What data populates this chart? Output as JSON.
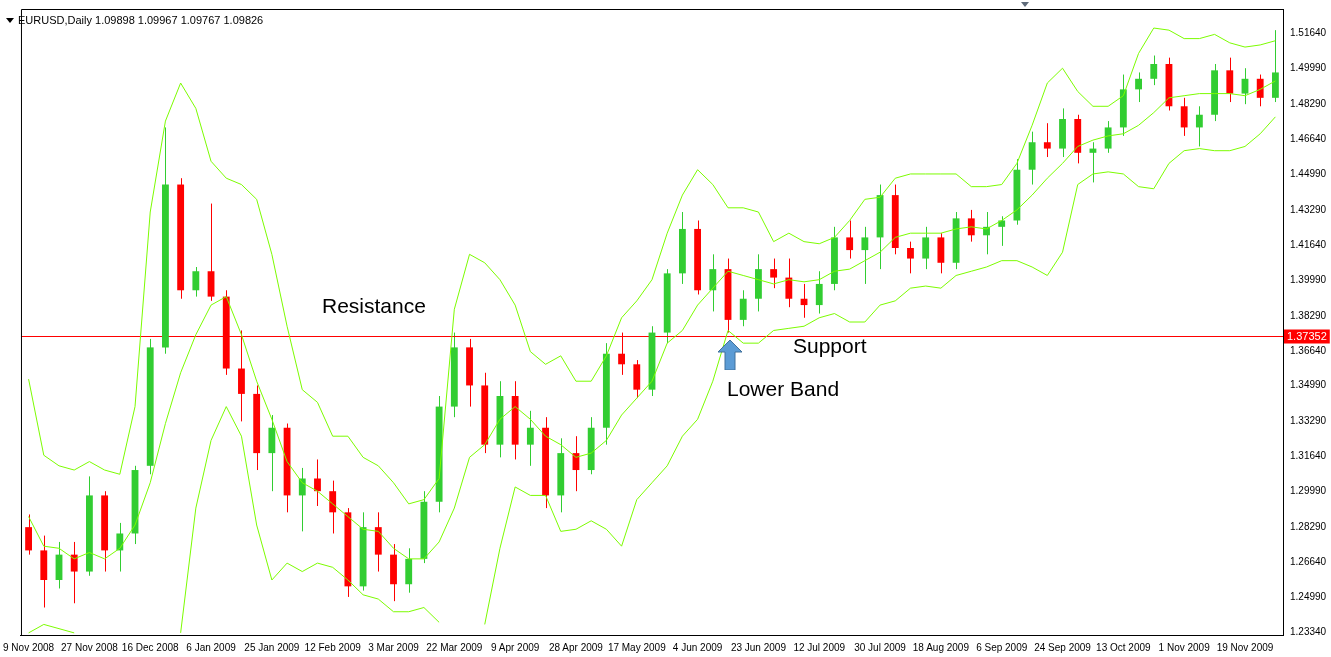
{
  "chart_data": {
    "type": "candlestick",
    "title": "EURUSD,Daily 1.09898 1.09967 1.09767 1.09826",
    "categories": [
      "9 Nov 2008",
      null,
      null,
      null,
      "27 Nov 2008",
      null,
      null,
      null,
      "16 Dec 2008",
      null,
      null,
      null,
      "6 Jan 2009",
      null,
      null,
      null,
      "25 Jan 2009",
      null,
      null,
      null,
      "12 Feb 2009",
      null,
      null,
      null,
      "3 Mar 2009",
      null,
      null,
      null,
      "22 Mar 2009",
      null,
      null,
      null,
      "9 Apr 2009",
      null,
      null,
      null,
      "28 Apr 2009",
      null,
      null,
      null,
      "17 May 2009",
      null,
      null,
      null,
      "4 Jun 2009",
      null,
      null,
      null,
      "23 Jun 2009",
      null,
      null,
      null,
      "12 Jul 2009",
      null,
      null,
      null,
      "30 Jul 2009",
      null,
      null,
      null,
      "18 Aug 2009",
      null,
      null,
      null,
      "6 Sep 2009",
      null,
      null,
      null,
      "24 Sep 2009",
      null,
      null,
      null,
      "13 Oct 2009",
      null,
      null,
      null,
      "1 Nov 2009",
      null,
      null,
      null,
      "19 Nov 2009",
      null,
      null
    ],
    "series": [
      {
        "ohlc": [
          [
            1.283,
            1.289,
            1.27,
            1.272
          ],
          [
            1.272,
            1.279,
            1.245,
            1.258
          ],
          [
            1.258,
            1.276,
            1.254,
            1.27
          ],
          [
            1.27,
            1.276,
            1.247,
            1.262
          ],
          [
            1.262,
            1.307,
            1.26,
            1.298
          ],
          [
            1.298,
            1.3,
            1.262,
            1.272
          ],
          [
            1.272,
            1.285,
            1.262,
            1.28
          ],
          [
            1.28,
            1.312,
            1.275,
            1.31
          ],
          [
            1.312,
            1.372,
            1.308,
            1.368
          ],
          [
            1.368,
            1.472,
            1.365,
            1.445
          ],
          [
            1.445,
            1.448,
            1.391,
            1.395
          ],
          [
            1.395,
            1.406,
            1.392,
            1.404
          ],
          [
            1.404,
            1.436,
            1.39,
            1.392
          ],
          [
            1.392,
            1.395,
            1.355,
            1.358
          ],
          [
            1.358,
            1.376,
            1.333,
            1.346
          ],
          [
            1.346,
            1.35,
            1.31,
            1.318
          ],
          [
            1.318,
            1.336,
            1.3,
            1.33
          ],
          [
            1.33,
            1.332,
            1.29,
            1.298
          ],
          [
            1.298,
            1.311,
            1.281,
            1.306
          ],
          [
            1.306,
            1.315,
            1.293,
            1.3
          ],
          [
            1.3,
            1.305,
            1.28,
            1.29
          ],
          [
            1.29,
            1.292,
            1.25,
            1.255
          ],
          [
            1.255,
            1.29,
            1.253,
            1.283
          ],
          [
            1.283,
            1.29,
            1.262,
            1.27
          ],
          [
            1.27,
            1.275,
            1.248,
            1.256
          ],
          [
            1.256,
            1.273,
            1.252,
            1.268
          ],
          [
            1.268,
            1.3,
            1.266,
            1.295
          ],
          [
            1.295,
            1.345,
            1.29,
            1.34
          ],
          [
            1.34,
            1.375,
            1.335,
            1.368
          ],
          [
            1.368,
            1.372,
            1.34,
            1.35
          ],
          [
            1.35,
            1.356,
            1.318,
            1.322
          ],
          [
            1.322,
            1.352,
            1.316,
            1.345
          ],
          [
            1.345,
            1.352,
            1.315,
            1.322
          ],
          [
            1.322,
            1.338,
            1.312,
            1.33
          ],
          [
            1.33,
            1.335,
            1.292,
            1.298
          ],
          [
            1.298,
            1.325,
            1.29,
            1.318
          ],
          [
            1.318,
            1.326,
            1.3,
            1.31
          ],
          [
            1.31,
            1.335,
            1.308,
            1.33
          ],
          [
            1.33,
            1.37,
            1.322,
            1.365
          ],
          [
            1.365,
            1.375,
            1.355,
            1.36
          ],
          [
            1.36,
            1.362,
            1.344,
            1.348
          ],
          [
            1.348,
            1.378,
            1.345,
            1.375
          ],
          [
            1.375,
            1.405,
            1.37,
            1.403
          ],
          [
            1.403,
            1.432,
            1.398,
            1.424
          ],
          [
            1.424,
            1.428,
            1.393,
            1.395
          ],
          [
            1.395,
            1.412,
            1.385,
            1.405
          ],
          [
            1.405,
            1.41,
            1.375,
            1.381
          ],
          [
            1.381,
            1.395,
            1.378,
            1.391
          ],
          [
            1.391,
            1.412,
            1.385,
            1.405
          ],
          [
            1.405,
            1.41,
            1.396,
            1.401
          ],
          [
            1.401,
            1.41,
            1.387,
            1.391
          ],
          [
            1.391,
            1.398,
            1.382,
            1.388
          ],
          [
            1.388,
            1.404,
            1.384,
            1.398
          ],
          [
            1.398,
            1.425,
            1.395,
            1.42
          ],
          [
            1.42,
            1.428,
            1.41,
            1.414
          ],
          [
            1.414,
            1.425,
            1.398,
            1.42
          ],
          [
            1.42,
            1.445,
            1.405,
            1.44
          ],
          [
            1.44,
            1.445,
            1.412,
            1.415
          ],
          [
            1.415,
            1.418,
            1.403,
            1.41
          ],
          [
            1.41,
            1.425,
            1.405,
            1.42
          ],
          [
            1.42,
            1.422,
            1.403,
            1.408
          ],
          [
            1.408,
            1.432,
            1.405,
            1.429
          ],
          [
            1.429,
            1.433,
            1.418,
            1.421
          ],
          [
            1.421,
            1.432,
            1.412,
            1.425
          ],
          [
            1.425,
            1.43,
            1.416,
            1.428
          ],
          [
            1.428,
            1.457,
            1.426,
            1.452
          ],
          [
            1.452,
            1.47,
            1.445,
            1.465
          ],
          [
            1.465,
            1.474,
            1.458,
            1.462
          ],
          [
            1.462,
            1.481,
            1.458,
            1.476
          ],
          [
            1.476,
            1.478,
            1.455,
            1.46
          ],
          [
            1.46,
            1.465,
            1.446,
            1.462
          ],
          [
            1.462,
            1.475,
            1.46,
            1.472
          ],
          [
            1.472,
            1.497,
            1.468,
            1.49
          ],
          [
            1.49,
            1.498,
            1.484,
            1.495
          ],
          [
            1.495,
            1.506,
            1.492,
            1.502
          ],
          [
            1.502,
            1.505,
            1.48,
            1.482
          ],
          [
            1.482,
            1.486,
            1.468,
            1.472
          ],
          [
            1.472,
            1.482,
            1.463,
            1.478
          ],
          [
            1.478,
            1.502,
            1.475,
            1.499
          ],
          [
            1.499,
            1.505,
            1.484,
            1.488
          ],
          [
            1.488,
            1.5,
            1.483,
            1.495
          ],
          [
            1.495,
            1.497,
            1.482,
            1.486
          ],
          [
            1.486,
            1.518,
            1.484,
            1.498
          ]
        ],
        "colors": [
          "#ff0000",
          "#ff0000",
          "#32cd32",
          "#ff0000",
          "#32cd32",
          "#ff0000",
          "#32cd32",
          "#32cd32",
          "#32cd32",
          "#32cd32",
          "#ff0000",
          "#32cd32",
          "#ff0000",
          "#ff0000",
          "#ff0000",
          "#ff0000",
          "#32cd32",
          "#ff0000",
          "#32cd32",
          "#ff0000",
          "#ff0000",
          "#ff0000",
          "#32cd32",
          "#ff0000",
          "#ff0000",
          "#32cd32",
          "#32cd32",
          "#32cd32",
          "#32cd32",
          "#ff0000",
          "#ff0000",
          "#32cd32",
          "#ff0000",
          "#32cd32",
          "#ff0000",
          "#32cd32",
          "#ff0000",
          "#32cd32",
          "#32cd32",
          "#ff0000",
          "#ff0000",
          "#32cd32",
          "#32cd32",
          "#32cd32",
          "#ff0000",
          "#32cd32",
          "#ff0000",
          "#32cd32",
          "#32cd32",
          "#ff0000",
          "#ff0000",
          "#ff0000",
          "#32cd32",
          "#32cd32",
          "#ff0000",
          "#32cd32",
          "#32cd32",
          "#ff0000",
          "#ff0000",
          "#32cd32",
          "#ff0000",
          "#32cd32",
          "#ff0000",
          "#32cd32",
          "#32cd32",
          "#32cd32",
          "#32cd32",
          "#ff0000",
          "#32cd32",
          "#ff0000",
          "#32cd32",
          "#32cd32",
          "#32cd32",
          "#32cd32",
          "#32cd32",
          "#ff0000",
          "#ff0000",
          "#32cd32",
          "#32cd32",
          "#ff0000",
          "#32cd32",
          "#ff0000",
          "#32cd32"
        ]
      },
      {
        "type": "line",
        "color": "#7cfc00",
        "values": [
          1.353,
          1.317,
          1.312,
          1.31,
          1.314,
          1.31,
          1.308,
          1.34,
          1.432,
          1.475,
          1.493,
          1.481,
          1.456,
          1.448,
          1.445,
          1.438,
          1.412,
          1.378,
          1.348,
          1.342,
          1.326,
          1.326,
          1.316,
          1.312,
          1.304,
          1.294,
          1.296,
          1.306,
          1.386,
          1.412,
          1.408,
          1.4,
          1.388,
          1.366,
          1.36,
          1.364,
          1.352,
          1.352,
          1.364,
          1.382,
          1.39,
          1.4,
          1.422,
          1.44,
          1.452,
          1.445,
          1.434,
          1.434,
          1.432,
          1.418,
          1.422,
          1.418,
          1.417,
          1.42,
          1.428,
          1.438,
          1.439,
          1.448,
          1.45,
          1.45,
          1.45,
          1.45,
          1.444,
          1.444,
          1.445,
          1.455,
          1.473,
          1.493,
          1.5,
          1.489,
          1.482,
          1.482,
          1.487,
          1.507,
          1.519,
          1.518,
          1.514,
          1.514,
          1.516,
          1.512,
          1.51,
          1.511,
          1.513
        ]
      },
      {
        "type": "line",
        "color": "#7cfc00",
        "values": [
          1.288,
          1.274,
          1.273,
          1.268,
          1.271,
          1.268,
          1.273,
          1.284,
          1.304,
          1.332,
          1.356,
          1.374,
          1.388,
          1.392,
          1.374,
          1.352,
          1.334,
          1.314,
          1.304,
          1.3,
          1.294,
          1.288,
          1.282,
          1.281,
          1.273,
          1.268,
          1.268,
          1.276,
          1.292,
          1.316,
          1.322,
          1.334,
          1.34,
          1.334,
          1.326,
          1.322,
          1.316,
          1.318,
          1.324,
          1.336,
          1.344,
          1.352,
          1.37,
          1.376,
          1.388,
          1.396,
          1.404,
          1.402,
          1.4,
          1.398,
          1.4,
          1.399,
          1.4,
          1.404,
          1.405,
          1.409,
          1.413,
          1.42,
          1.422,
          1.422,
          1.422,
          1.424,
          1.425,
          1.424,
          1.428,
          1.433,
          1.44,
          1.448,
          1.455,
          1.463,
          1.466,
          1.468,
          1.469,
          1.473,
          1.479,
          1.486,
          1.487,
          1.488,
          1.488,
          1.488,
          1.487,
          1.49,
          1.494
        ]
      },
      {
        "type": "line",
        "color": "#7cfc00",
        "values": [
          1.233,
          1.237,
          1.235,
          1.233,
          null,
          null,
          null,
          null,
          null,
          null,
          1.233,
          1.292,
          1.324,
          1.34,
          1.326,
          1.284,
          1.258,
          1.266,
          1.262,
          1.266,
          1.264,
          1.258,
          1.251,
          1.249,
          1.243,
          1.243,
          1.245,
          1.238,
          null,
          null,
          1.237,
          1.273,
          1.302,
          1.298,
          1.298,
          1.281,
          1.282,
          1.286,
          1.282,
          1.274,
          1.296,
          1.304,
          1.312,
          1.326,
          1.334,
          1.352,
          1.376,
          1.37,
          1.37,
          1.376,
          1.377,
          1.378,
          1.382,
          1.384,
          1.38,
          1.38,
          1.388,
          1.39,
          1.396,
          1.397,
          1.396,
          1.402,
          1.404,
          1.406,
          1.409,
          1.409,
          1.406,
          1.402,
          1.413,
          1.445,
          1.45,
          1.451,
          1.45,
          1.444,
          1.443,
          1.455,
          1.461,
          1.462,
          1.461,
          1.461,
          1.463,
          1.469,
          1.477
        ]
      }
    ],
    "ylim": [
      1.232,
      1.528
    ],
    "yticks": [
      {
        "value": 1.5164,
        "label": "1.51640"
      },
      {
        "value": 1.4999,
        "label": "1.49990"
      },
      {
        "value": 1.4829,
        "label": "1.48290"
      },
      {
        "value": 1.4664,
        "label": "1.46640"
      },
      {
        "value": 1.4499,
        "label": "1.44990"
      },
      {
        "value": 1.4329,
        "label": "1.43290"
      },
      {
        "value": 1.4164,
        "label": "1.41640"
      },
      {
        "value": 1.3999,
        "label": "1.39990"
      },
      {
        "value": 1.3829,
        "label": "1.38290"
      },
      {
        "value": 1.3664,
        "label": "1.36640"
      },
      {
        "value": 1.3499,
        "label": "1.34990"
      },
      {
        "value": 1.3329,
        "label": "1.33290"
      },
      {
        "value": 1.3164,
        "label": "1.31640"
      },
      {
        "value": 1.2999,
        "label": "1.29990"
      },
      {
        "value": 1.2829,
        "label": "1.28290"
      },
      {
        "value": 1.2664,
        "label": "1.26640"
      },
      {
        "value": 1.2499,
        "label": "1.24990"
      },
      {
        "value": 1.2334,
        "label": "1.23340"
      }
    ],
    "ref_lines": [
      {
        "axis": "y",
        "value": 1.37352,
        "label": "1.37352",
        "color": "#ff0000"
      }
    ],
    "annotations": [
      "Resistance",
      "Support",
      "Lower Band"
    ],
    "marker": "none"
  }
}
